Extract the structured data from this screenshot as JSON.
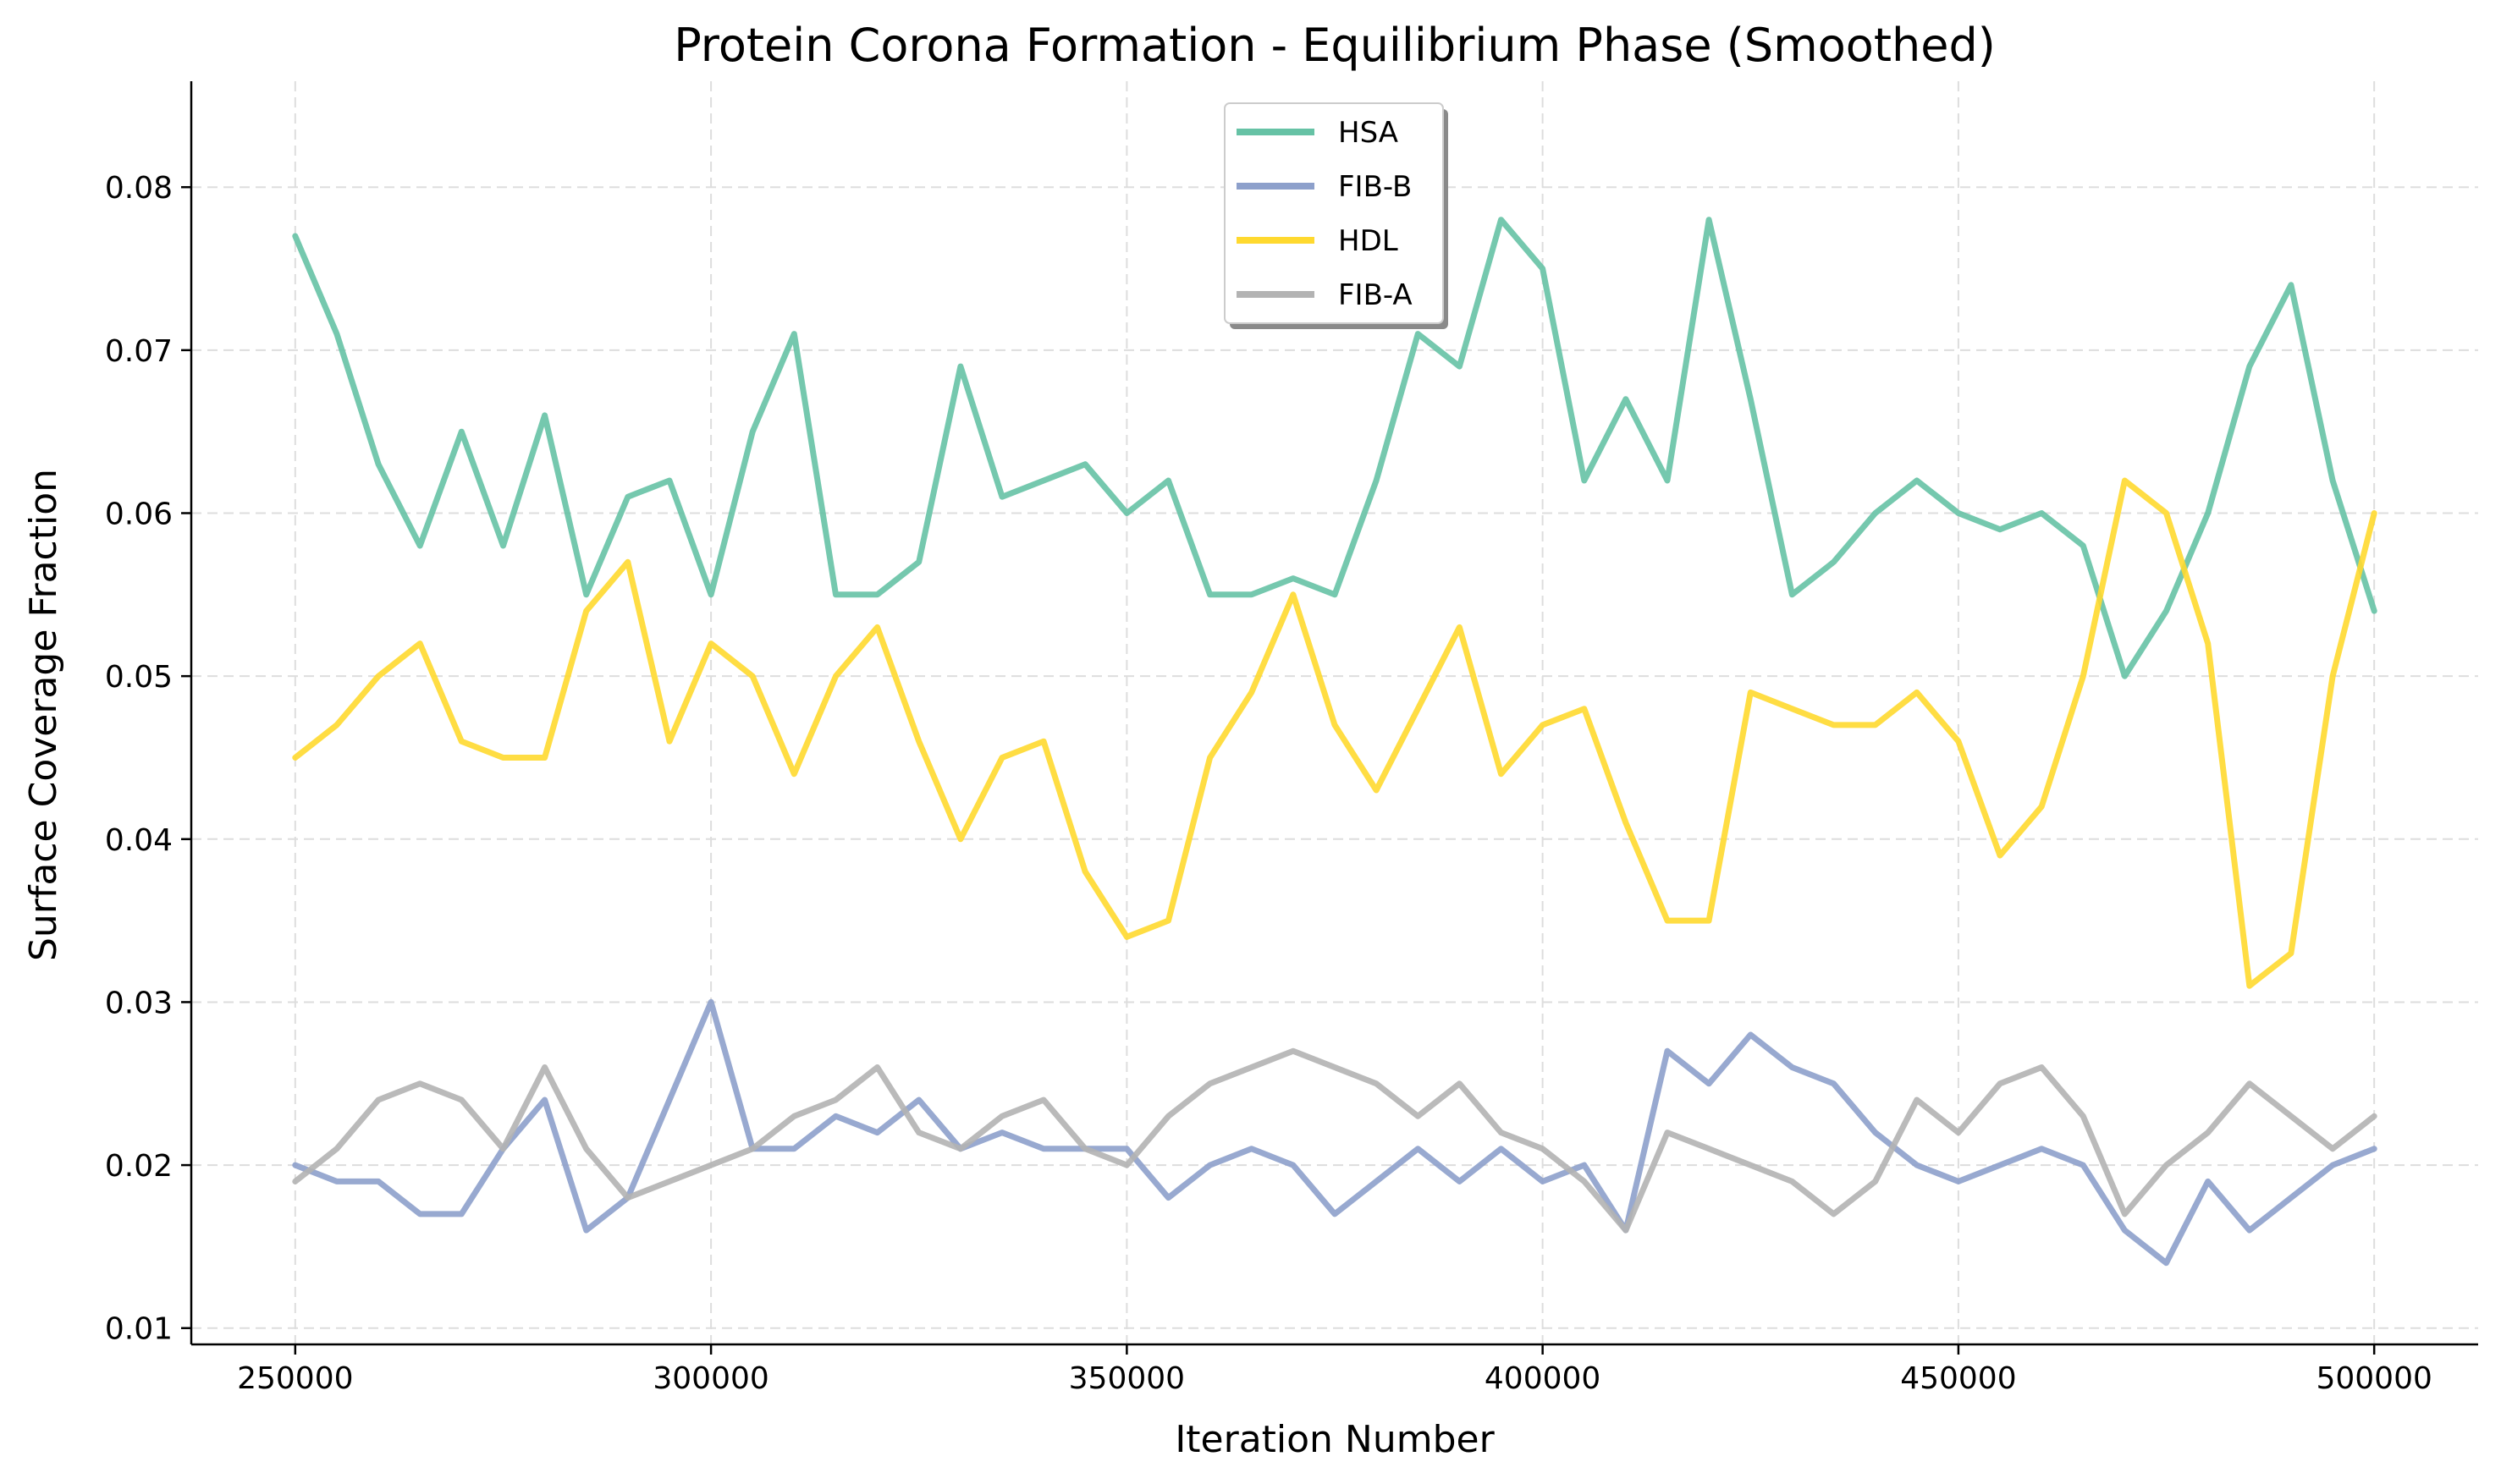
{
  "chart_data": {
    "type": "line",
    "title": "Protein Corona Formation - Equilibrium Phase (Smoothed)",
    "xlabel": "Iteration Number",
    "ylabel": "Surface Coverage Fraction",
    "xlim": [
      237500,
      512500
    ],
    "ylim": [
      0.009,
      0.0865
    ],
    "xticks": [
      250000,
      300000,
      350000,
      400000,
      450000,
      500000
    ],
    "xtick_labels": [
      "250000",
      "300000",
      "350000",
      "400000",
      "450000",
      "500000"
    ],
    "yticks": [
      0.01,
      0.02,
      0.03,
      0.04,
      0.05,
      0.06,
      0.07,
      0.08
    ],
    "ytick_labels": [
      "0.01",
      "0.02",
      "0.03",
      "0.04",
      "0.05",
      "0.06",
      "0.07",
      "0.08"
    ],
    "grid": true,
    "legend_position": "top-center",
    "x": [
      250000,
      255000,
      260000,
      265000,
      270000,
      275000,
      280000,
      285000,
      290000,
      295000,
      300000,
      305000,
      310000,
      315000,
      320000,
      325000,
      330000,
      335000,
      340000,
      345000,
      350000,
      355000,
      360000,
      365000,
      370000,
      375000,
      380000,
      385000,
      390000,
      395000,
      400000,
      405000,
      410000,
      415000,
      420000,
      425000,
      430000,
      435000,
      440000,
      445000,
      450000,
      455000,
      460000,
      465000,
      470000,
      475000,
      480000,
      485000,
      490000,
      495000,
      500000
    ],
    "series": [
      {
        "name": "HSA",
        "color": "#66c2a5",
        "values": [
          0.077,
          0.071,
          0.063,
          0.058,
          0.065,
          0.058,
          0.066,
          0.055,
          0.061,
          0.062,
          0.055,
          0.065,
          0.071,
          0.055,
          0.055,
          0.057,
          0.069,
          0.061,
          0.062,
          0.063,
          0.06,
          0.062,
          0.055,
          0.055,
          0.056,
          0.055,
          0.062,
          0.071,
          0.069,
          0.078,
          0.075,
          0.062,
          0.067,
          0.062,
          0.078,
          0.067,
          0.055,
          0.057,
          0.06,
          0.062,
          0.06,
          0.059,
          0.06,
          0.058,
          0.05,
          0.054,
          0.06,
          0.069,
          0.074,
          0.062,
          0.054
        ]
      },
      {
        "name": "FIB-B",
        "color": "#8da0cb",
        "values": [
          0.02,
          0.019,
          0.019,
          0.017,
          0.017,
          0.021,
          0.024,
          0.016,
          0.018,
          0.024,
          0.03,
          0.021,
          0.021,
          0.023,
          0.022,
          0.024,
          0.021,
          0.022,
          0.021,
          0.021,
          0.021,
          0.018,
          0.02,
          0.021,
          0.02,
          0.017,
          0.019,
          0.021,
          0.019,
          0.021,
          0.019,
          0.02,
          0.016,
          0.027,
          0.025,
          0.028,
          0.026,
          0.025,
          0.022,
          0.02,
          0.019,
          0.02,
          0.021,
          0.02,
          0.016,
          0.014,
          0.019,
          0.016,
          0.018,
          0.02,
          0.021
        ]
      },
      {
        "name": "HDL",
        "color": "#ffd92f",
        "values": [
          0.045,
          0.047,
          0.05,
          0.052,
          0.046,
          0.045,
          0.045,
          0.054,
          0.057,
          0.046,
          0.052,
          0.05,
          0.044,
          0.05,
          0.053,
          0.046,
          0.04,
          0.045,
          0.046,
          0.038,
          0.034,
          0.035,
          0.045,
          0.049,
          0.055,
          0.047,
          0.043,
          0.048,
          0.053,
          0.044,
          0.047,
          0.048,
          0.041,
          0.035,
          0.035,
          0.049,
          0.048,
          0.047,
          0.047,
          0.049,
          0.046,
          0.039,
          0.042,
          0.05,
          0.062,
          0.06,
          0.052,
          0.031,
          0.033,
          0.05,
          0.06
        ]
      },
      {
        "name": "FIB-A",
        "color": "#b3b3b3",
        "values": [
          0.019,
          0.021,
          0.024,
          0.025,
          0.024,
          0.021,
          0.026,
          0.021,
          0.018,
          0.019,
          0.02,
          0.021,
          0.023,
          0.024,
          0.026,
          0.022,
          0.021,
          0.023,
          0.024,
          0.021,
          0.02,
          0.023,
          0.025,
          0.026,
          0.027,
          0.026,
          0.025,
          0.023,
          0.025,
          0.022,
          0.021,
          0.019,
          0.016,
          0.022,
          0.021,
          0.02,
          0.019,
          0.017,
          0.019,
          0.024,
          0.022,
          0.025,
          0.026,
          0.023,
          0.017,
          0.02,
          0.022,
          0.025,
          0.023,
          0.021,
          0.023
        ]
      }
    ]
  }
}
